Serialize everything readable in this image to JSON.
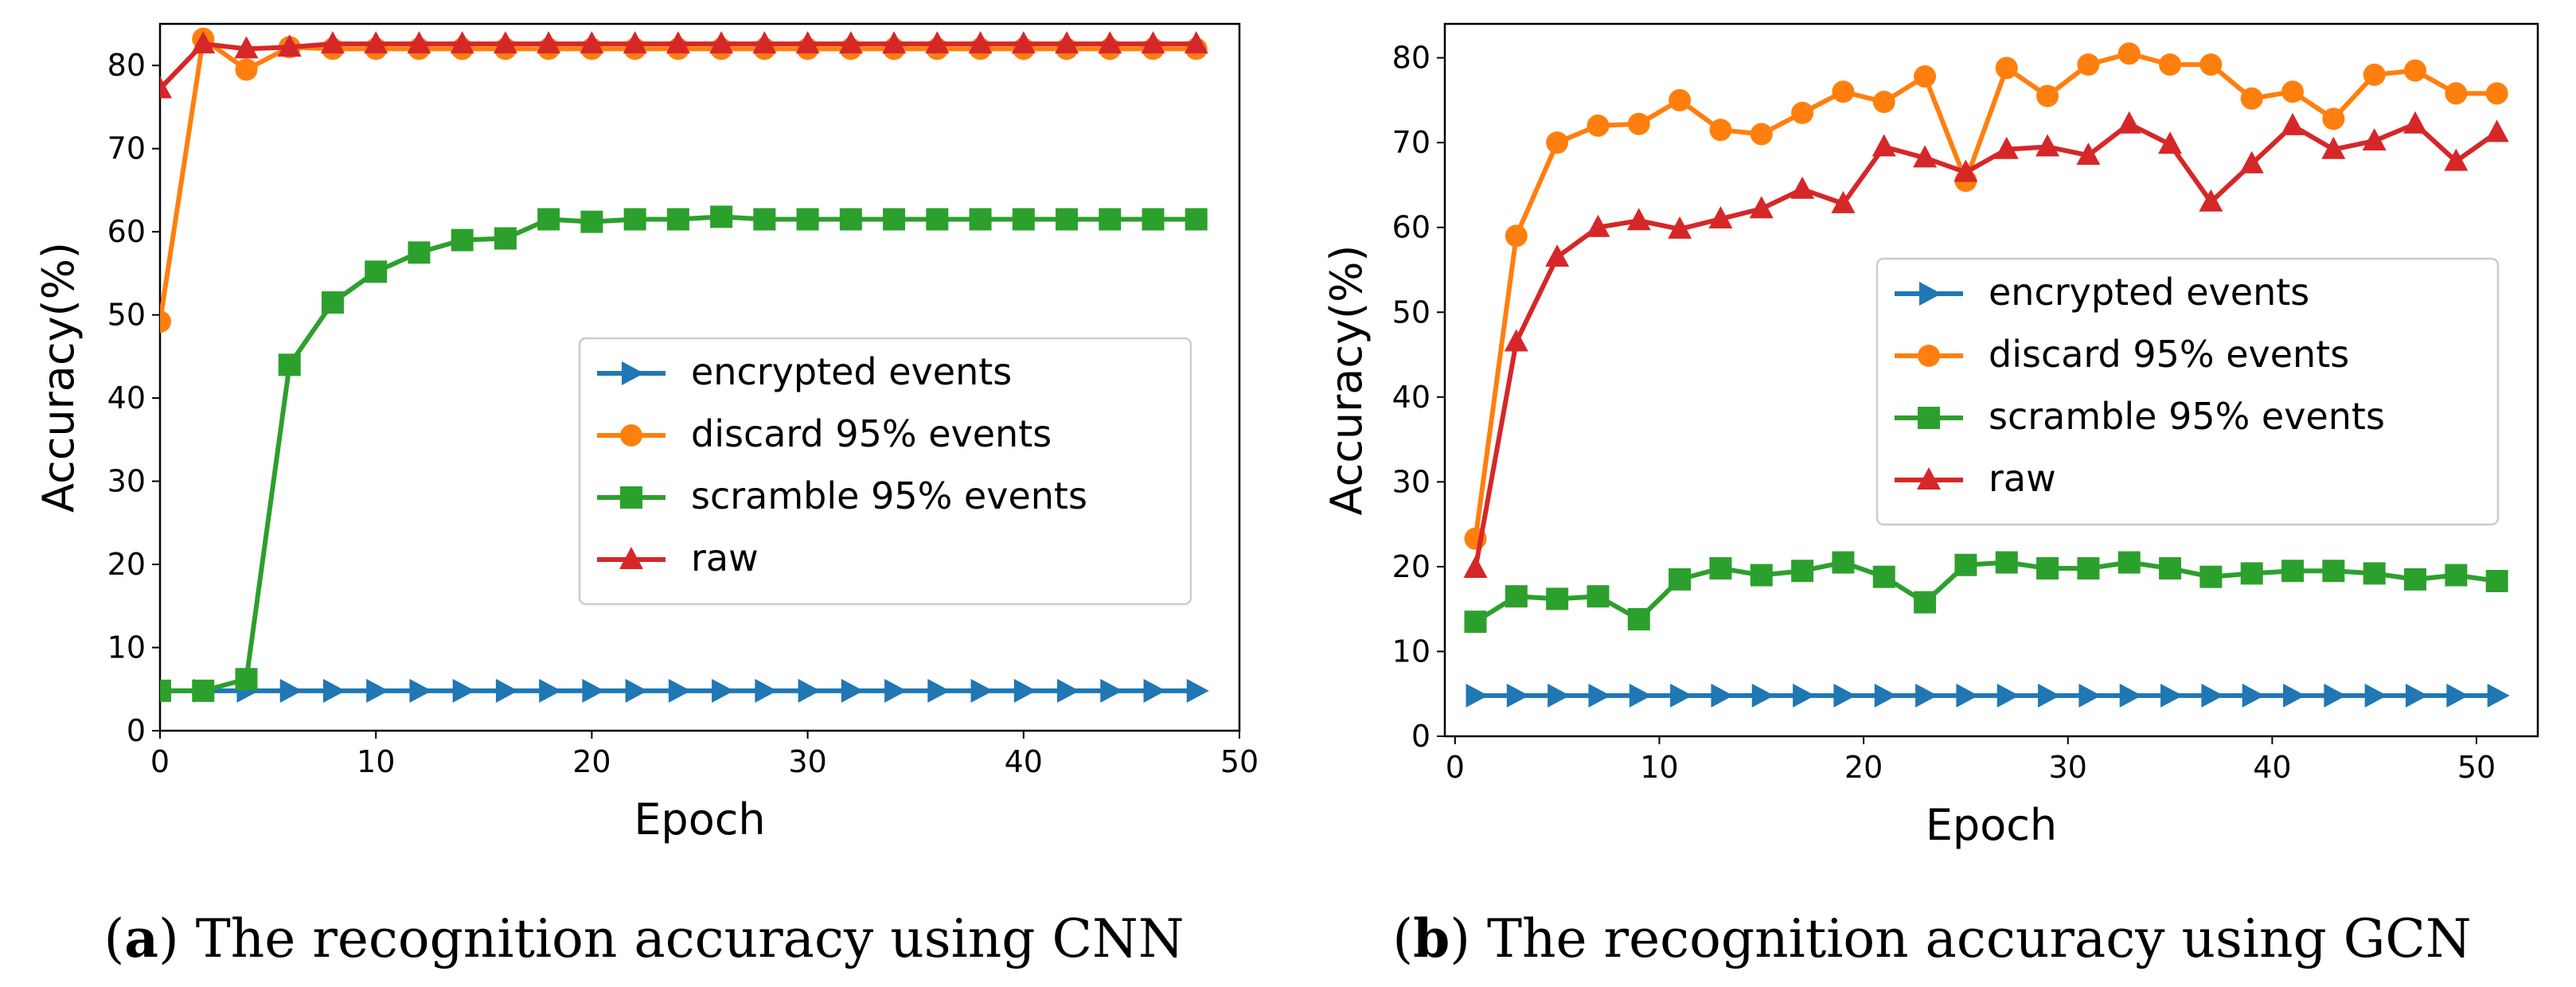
{
  "figure": {
    "colors": {
      "encrypted": "#1f77b4",
      "discard": "#ff7f0e",
      "scramble": "#2ca02c",
      "raw": "#d62728"
    }
  },
  "panels": [
    {
      "caption": {
        "letter": "a",
        "text": "The recognition accuracy using CNN"
      },
      "chart_data": {
        "type": "line",
        "title": "",
        "xlabel": "Epoch",
        "ylabel": "Accuracy(%)",
        "xlim": [
          0,
          50
        ],
        "ylim": [
          0,
          85
        ],
        "xticks": [
          0,
          10,
          20,
          30,
          40,
          50
        ],
        "yticks": [
          0,
          10,
          20,
          30,
          40,
          50,
          60,
          70,
          80
        ],
        "legend_position": "center-right",
        "x": [
          0,
          2,
          4,
          6,
          8,
          10,
          12,
          14,
          16,
          18,
          20,
          22,
          24,
          26,
          28,
          30,
          32,
          34,
          36,
          38,
          40,
          42,
          44,
          46,
          48
        ],
        "series": [
          {
            "name": "encrypted events",
            "marker": "triangle-right",
            "color": "#1f77b4",
            "values": [
              4.8,
              4.8,
              4.8,
              4.8,
              4.8,
              4.8,
              4.8,
              4.8,
              4.8,
              4.8,
              4.8,
              4.8,
              4.8,
              4.8,
              4.8,
              4.8,
              4.8,
              4.8,
              4.8,
              4.8,
              4.8,
              4.8,
              4.8,
              4.8,
              4.8
            ]
          },
          {
            "name": "discard 95% events",
            "marker": "circle",
            "color": "#ff7f0e",
            "values": [
              49.2,
              83.2,
              79.5,
              82.2,
              82.0,
              82.0,
              82.0,
              82.0,
              82.0,
              82.0,
              82.0,
              82.0,
              82.0,
              82.0,
              82.0,
              82.0,
              82.0,
              82.0,
              82.0,
              82.0,
              82.0,
              82.0,
              82.0,
              82.0,
              82.0
            ]
          },
          {
            "name": "scramble 95% events",
            "marker": "square",
            "color": "#2ca02c",
            "values": [
              4.8,
              4.8,
              6.2,
              44.0,
              51.5,
              55.2,
              57.5,
              59.0,
              59.2,
              61.5,
              61.2,
              61.5,
              61.5,
              61.8,
              61.5,
              61.5,
              61.5,
              61.5,
              61.5,
              61.5,
              61.5,
              61.5,
              61.5,
              61.5,
              61.5
            ]
          },
          {
            "name": "raw",
            "marker": "triangle-up",
            "color": "#d62728",
            "values": [
              77.2,
              82.6,
              82.0,
              82.2,
              82.6,
              82.6,
              82.6,
              82.6,
              82.6,
              82.6,
              82.6,
              82.6,
              82.6,
              82.6,
              82.6,
              82.6,
              82.6,
              82.6,
              82.6,
              82.6,
              82.6,
              82.6,
              82.6,
              82.6,
              82.6
            ]
          }
        ]
      }
    },
    {
      "caption": {
        "letter": "b",
        "text": "The recognition accuracy using GCN"
      },
      "chart_data": {
        "type": "line",
        "title": "",
        "xlabel": "Epoch",
        "ylabel": "Accuracy(%)",
        "xlim": [
          -0.5,
          53
        ],
        "ylim": [
          0,
          84
        ],
        "xticks": [
          0,
          10,
          20,
          30,
          40,
          50
        ],
        "yticks": [
          0,
          10,
          20,
          30,
          40,
          50,
          60,
          70,
          80
        ],
        "legend_position": "center-right",
        "x": [
          1,
          3,
          5,
          7,
          9,
          11,
          13,
          15,
          17,
          19,
          21,
          23,
          25,
          27,
          29,
          31,
          33,
          35,
          37,
          39,
          41,
          43,
          45,
          47,
          49,
          51
        ],
        "series": [
          {
            "name": "encrypted events",
            "marker": "triangle-right",
            "color": "#1f77b4",
            "values": [
              4.8,
              4.8,
              4.8,
              4.8,
              4.8,
              4.8,
              4.8,
              4.8,
              4.8,
              4.8,
              4.8,
              4.8,
              4.8,
              4.8,
              4.8,
              4.8,
              4.8,
              4.8,
              4.8,
              4.8,
              4.8,
              4.8,
              4.8,
              4.8,
              4.8,
              4.8
            ]
          },
          {
            "name": "discard 95% events",
            "marker": "circle",
            "color": "#ff7f0e",
            "values": [
              23.3,
              59.0,
              70.0,
              72.0,
              72.2,
              75.0,
              71.5,
              71.0,
              73.5,
              76.0,
              74.8,
              77.8,
              65.5,
              78.8,
              75.5,
              79.2,
              80.5,
              79.2,
              79.2,
              75.2,
              76.0,
              72.8,
              78.0,
              78.5,
              75.8,
              75.8
            ]
          },
          {
            "name": "scramble 95% events",
            "marker": "square",
            "color": "#2ca02c",
            "values": [
              13.5,
              16.5,
              16.2,
              16.5,
              13.8,
              18.5,
              19.8,
              19.0,
              19.5,
              20.5,
              18.8,
              15.8,
              20.2,
              20.5,
              19.8,
              19.8,
              20.5,
              19.8,
              18.8,
              19.2,
              19.5,
              19.5,
              19.2,
              18.5,
              19.0,
              18.3
            ]
          },
          {
            "name": "raw",
            "marker": "triangle-up",
            "color": "#d62728",
            "values": [
              19.8,
              46.5,
              56.5,
              60.0,
              60.8,
              59.8,
              61.0,
              62.2,
              64.5,
              62.8,
              69.5,
              68.2,
              66.5,
              69.2,
              69.5,
              68.5,
              72.2,
              69.8,
              63.0,
              67.5,
              72.0,
              69.2,
              70.2,
              72.2,
              67.8,
              71.2
            ]
          }
        ]
      }
    }
  ]
}
